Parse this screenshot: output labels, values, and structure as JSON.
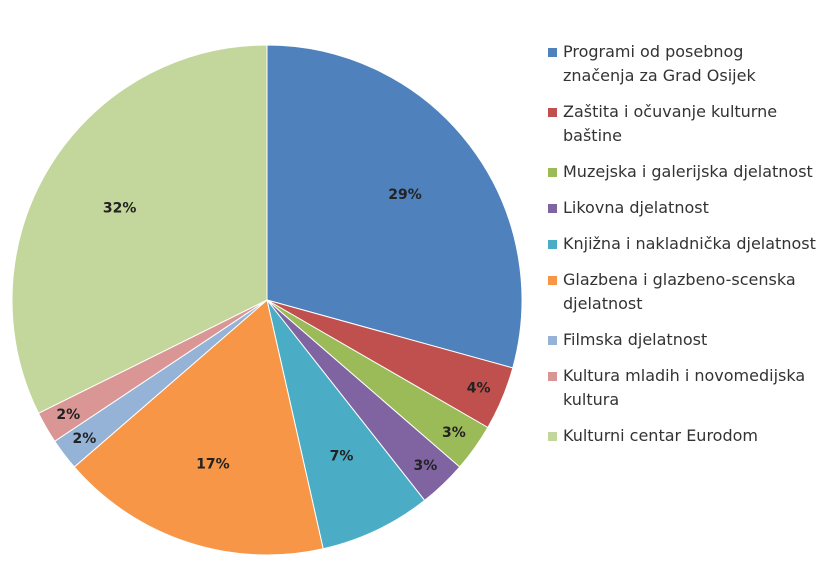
{
  "chart_data": {
    "type": "pie",
    "categories": [
      "Programi od posebnog značenja za Grad Osijek",
      "Zaštita i očuvanje kulturne baštine",
      "Muzejska i galerijska djelatnost",
      "Likovna djelatnost",
      "Knjižna i nakladnička djelatnost",
      "Glazbena i glazbeno-scenska djelatnost",
      "Filmska djelatnost",
      "Kultura mladih i novomedijska kultura",
      "Kulturni centar Eurodom"
    ],
    "values": [
      29,
      4,
      3,
      3,
      7,
      17,
      2,
      2,
      32
    ],
    "value_labels": [
      "29%",
      "4%",
      "3%",
      "3%",
      "7%",
      "17%",
      "2%",
      "2%",
      "32%"
    ],
    "colors": [
      "#4f81bd",
      "#c0504d",
      "#9bbb59",
      "#8064a2",
      "#4bacc6",
      "#f79646",
      "#95b3d7",
      "#d99694",
      "#c3d69b"
    ]
  }
}
